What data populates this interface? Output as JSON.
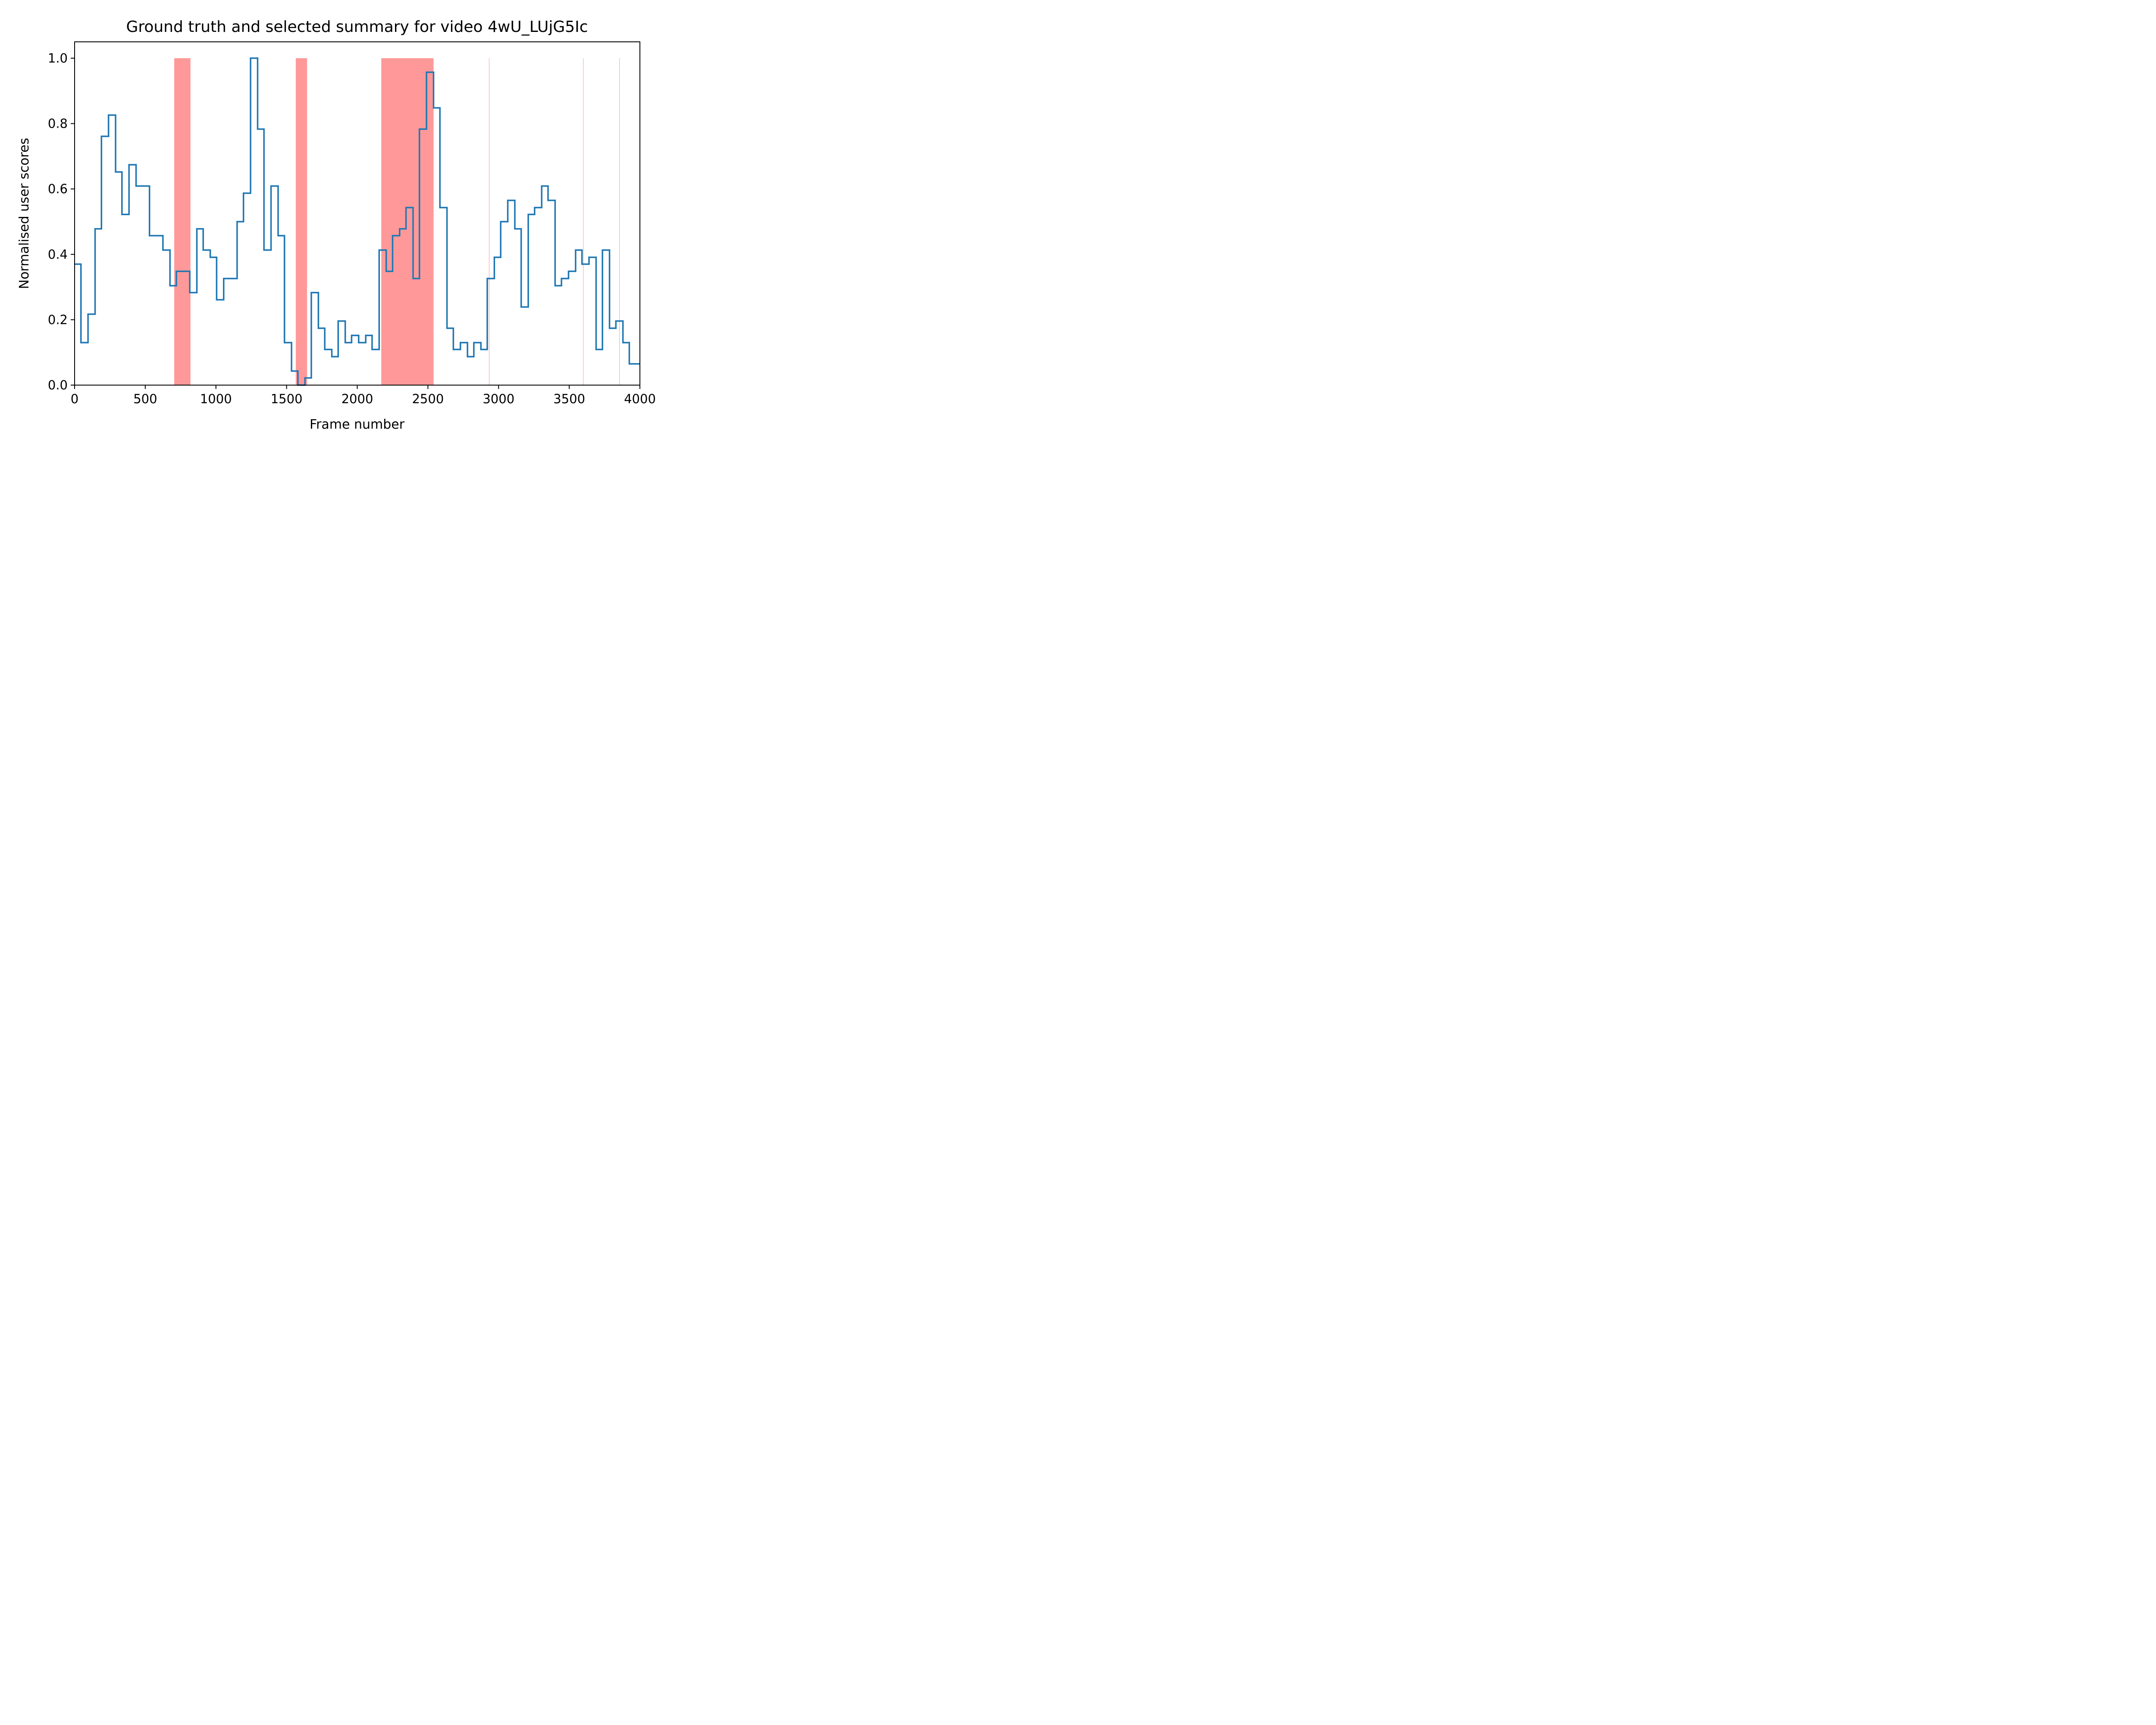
{
  "chart_data": {
    "type": "line",
    "title": "Ground truth and selected summary for video 4wU_LUjG5Ic",
    "xlabel": "Frame number",
    "ylabel": "Normalised user scores",
    "xlim": [
      0,
      4000
    ],
    "ylim": [
      0,
      1.05
    ],
    "x_ticks": [
      0,
      500,
      1000,
      1500,
      2000,
      2500,
      3000,
      3500,
      4000
    ],
    "x_tick_labels": [
      "0",
      "500",
      "1000",
      "1500",
      "2000",
      "2500",
      "3000",
      "3500",
      "4000"
    ],
    "y_ticks": [
      0,
      0.2,
      0.4,
      0.6,
      0.8,
      1.0
    ],
    "y_tick_labels": [
      "0.0",
      "0.2",
      "0.4",
      "0.6",
      "0.8",
      "1.0"
    ],
    "grid": false,
    "series": [
      {
        "style": "step",
        "color": "#1f77b4",
        "points": [
          [
            0,
            0.37
          ],
          [
            45,
            0.13
          ],
          [
            95,
            0.217
          ],
          [
            145,
            0.478
          ],
          [
            190,
            0.761
          ],
          [
            240,
            0.826
          ],
          [
            290,
            0.652
          ],
          [
            335,
            0.522
          ],
          [
            385,
            0.674
          ],
          [
            435,
            0.609
          ],
          [
            530,
            0.457
          ],
          [
            625,
            0.413
          ],
          [
            675,
            0.304
          ],
          [
            720,
            0.348
          ],
          [
            815,
            0.283
          ],
          [
            865,
            0.478
          ],
          [
            910,
            0.413
          ],
          [
            960,
            0.391
          ],
          [
            1005,
            0.261
          ],
          [
            1055,
            0.326
          ],
          [
            1150,
            0.5
          ],
          [
            1195,
            0.587
          ],
          [
            1245,
            1.0
          ],
          [
            1295,
            0.783
          ],
          [
            1340,
            0.413
          ],
          [
            1390,
            0.609
          ],
          [
            1440,
            0.457
          ],
          [
            1485,
            0.13
          ],
          [
            1535,
            0.043
          ],
          [
            1580,
            0.0
          ],
          [
            1630,
            0.022
          ],
          [
            1675,
            0.283
          ],
          [
            1725,
            0.174
          ],
          [
            1770,
            0.109
          ],
          [
            1820,
            0.087
          ],
          [
            1865,
            0.196
          ],
          [
            1915,
            0.13
          ],
          [
            1960,
            0.152
          ],
          [
            2010,
            0.13
          ],
          [
            2060,
            0.152
          ],
          [
            2105,
            0.109
          ],
          [
            2155,
            0.413
          ],
          [
            2205,
            0.348
          ],
          [
            2250,
            0.457
          ],
          [
            2300,
            0.478
          ],
          [
            2345,
            0.543
          ],
          [
            2395,
            0.326
          ],
          [
            2440,
            0.783
          ],
          [
            2490,
            0.957
          ],
          [
            2540,
            0.848
          ],
          [
            2585,
            0.543
          ],
          [
            2635,
            0.174
          ],
          [
            2680,
            0.109
          ],
          [
            2730,
            0.13
          ],
          [
            2780,
            0.087
          ],
          [
            2825,
            0.13
          ],
          [
            2875,
            0.109
          ],
          [
            2920,
            0.326
          ],
          [
            2970,
            0.391
          ],
          [
            3015,
            0.5
          ],
          [
            3065,
            0.565
          ],
          [
            3115,
            0.478
          ],
          [
            3160,
            0.239
          ],
          [
            3210,
            0.522
          ],
          [
            3255,
            0.543
          ],
          [
            3305,
            0.609
          ],
          [
            3350,
            0.565
          ],
          [
            3400,
            0.304
          ],
          [
            3445,
            0.326
          ],
          [
            3495,
            0.348
          ],
          [
            3545,
            0.413
          ],
          [
            3590,
            0.37
          ],
          [
            3640,
            0.391
          ],
          [
            3690,
            0.109
          ],
          [
            3735,
            0.413
          ],
          [
            3785,
            0.174
          ],
          [
            3830,
            0.196
          ],
          [
            3880,
            0.13
          ],
          [
            3925,
            0.065
          ],
          [
            4000,
            0.065
          ]
        ]
      }
    ],
    "summary_color": "#ff9999",
    "summary_segments": [
      [
        705,
        820
      ],
      [
        1565,
        1645
      ],
      [
        2170,
        2540
      ],
      [
        2932,
        2934
      ],
      [
        3598,
        3600
      ],
      [
        3854,
        3857
      ]
    ]
  }
}
